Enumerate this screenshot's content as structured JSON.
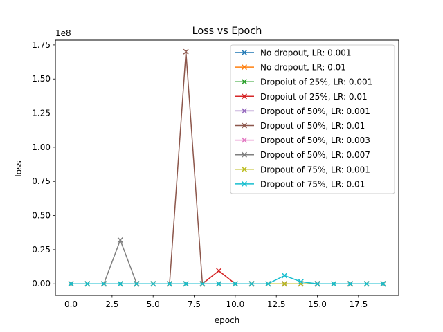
{
  "chart_data": {
    "type": "line",
    "title": "Loss vs Epoch",
    "xlabel": "epoch",
    "ylabel": "loss",
    "y_offset_label": "1e8",
    "y_multiplier": 100000000,
    "xlim": [
      -0.95,
      19.95
    ],
    "ylim": [
      -0.085,
      1.785
    ],
    "xticks": [
      0.0,
      2.5,
      5.0,
      7.5,
      10.0,
      12.5,
      15.0,
      17.5
    ],
    "xtick_labels": [
      "0.0",
      "2.5",
      "5.0",
      "7.5",
      "10.0",
      "12.5",
      "15.0",
      "17.5"
    ],
    "yticks": [
      0.0,
      0.25,
      0.5,
      0.75,
      1.0,
      1.25,
      1.5,
      1.75
    ],
    "ytick_labels": [
      "0.00",
      "0.25",
      "0.50",
      "0.75",
      "1.00",
      "1.25",
      "1.50",
      "1.75"
    ],
    "grid": false,
    "legend_position": "top-right",
    "marker": "x",
    "x": [
      0,
      1,
      2,
      3,
      4,
      5,
      6,
      7,
      8,
      9,
      10,
      11,
      12,
      13,
      14,
      15,
      16,
      17,
      18,
      19
    ],
    "series": [
      {
        "name": "No dropout, LR: 0.001",
        "color": "#1f77b4",
        "values": [
          0,
          0,
          0,
          0,
          0,
          0,
          0,
          0,
          0,
          0,
          0,
          0,
          0,
          0,
          0,
          0,
          0,
          0,
          0,
          0
        ]
      },
      {
        "name": "No dropout, LR: 0.01",
        "color": "#ff7f0e",
        "values": [
          0,
          0,
          0,
          0,
          0,
          0,
          0,
          0,
          0,
          0,
          0,
          0,
          0,
          0,
          0,
          0,
          0,
          0,
          0,
          0
        ]
      },
      {
        "name": "Dropoiut of 25%, LR: 0.001",
        "color": "#2ca02c",
        "values": [
          0,
          0,
          0,
          0,
          0,
          0,
          0,
          0,
          0,
          0,
          0,
          0,
          0,
          0,
          0,
          0,
          0,
          0,
          0,
          0
        ]
      },
      {
        "name": "Dropoiut of 25%, LR: 0.01",
        "color": "#d62728",
        "values": [
          0,
          0,
          0,
          0,
          0,
          0,
          0,
          0,
          0,
          0.095,
          0,
          0,
          0,
          0,
          0,
          0,
          0,
          0,
          0,
          0
        ]
      },
      {
        "name": "Dropout of 50%, LR: 0.001",
        "color": "#9467bd",
        "values": [
          0,
          0,
          0,
          0,
          0,
          0,
          0,
          0,
          0,
          0,
          0,
          0,
          0,
          0,
          0,
          0,
          0,
          0,
          0,
          0
        ]
      },
      {
        "name": "Dropout of 50%, LR: 0.01",
        "color": "#8c564b",
        "values": [
          0,
          0,
          0,
          0,
          0,
          0,
          0,
          1.7,
          0,
          0,
          0,
          0,
          0,
          0,
          0,
          0,
          0,
          0,
          0,
          0
        ]
      },
      {
        "name": "Dropout of 50%, LR: 0.003",
        "color": "#e377c2",
        "values": [
          0,
          0,
          0,
          0,
          0,
          0,
          0,
          0,
          0,
          0,
          0,
          0,
          0,
          0,
          0,
          0,
          0,
          0,
          0,
          0
        ]
      },
      {
        "name": "Dropout of 50%, LR: 0.007",
        "color": "#7f7f7f",
        "values": [
          0,
          0,
          0,
          0.32,
          0,
          0,
          0,
          0,
          0,
          0,
          0,
          0,
          0,
          0,
          0,
          0,
          0,
          0,
          0,
          0
        ]
      },
      {
        "name": "Dropout of 75%, LR: 0.001",
        "color": "#bcbd22",
        "values": [
          0,
          0,
          0,
          0,
          0,
          0,
          0,
          0,
          0,
          0,
          0,
          0,
          0,
          0,
          0,
          0,
          0,
          0,
          0,
          0
        ]
      },
      {
        "name": "Dropout of 75%, LR: 0.01",
        "color": "#17becf",
        "values": [
          0,
          0,
          0,
          0,
          0,
          0,
          0,
          0,
          0,
          0,
          0,
          0,
          0,
          0.06,
          0.015,
          0,
          0,
          0,
          0,
          0
        ]
      }
    ]
  }
}
